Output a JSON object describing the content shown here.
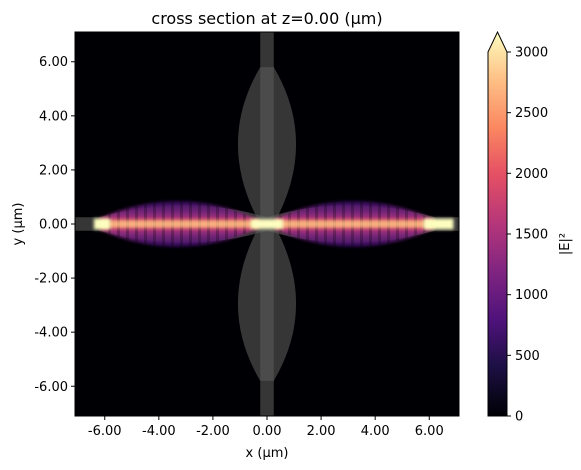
{
  "chart_data": {
    "type": "heatmap",
    "title": "cross section at z=0.00 (µm)",
    "xlabel": "x (µm)",
    "ylabel": "y (µm)",
    "xlim": [
      -7.1,
      7.1
    ],
    "ylim": [
      -7.1,
      7.1
    ],
    "x_ticks": [
      -6,
      -4,
      -2,
      0,
      2,
      4,
      6
    ],
    "x_tick_labels": [
      "-6.00",
      "-4.00",
      "-2.00",
      "0.00",
      "2.00",
      "4.00",
      "6.00"
    ],
    "y_ticks": [
      -6,
      -4,
      -2,
      0,
      2,
      4,
      6
    ],
    "y_tick_labels": [
      "-6.00",
      "-4.00",
      "-2.00",
      "0.00",
      "2.00",
      "4.00",
      "6.00"
    ],
    "grid": false,
    "background_color": "#000004",
    "colormap": "magma",
    "colorbar": {
      "label": "|E|²",
      "vmin": 0,
      "vmax": 3000,
      "extend": "max",
      "ticks": [
        0,
        500,
        1000,
        1500,
        2000,
        2500,
        3000
      ],
      "tick_labels": [
        "0",
        "500",
        "1000",
        "1500",
        "2000",
        "2500",
        "3000"
      ]
    },
    "structures": {
      "color": "#5a5a5a",
      "opacity": 0.6,
      "horizontal_waveguide": {
        "x_range": [
          -7.1,
          7.1
        ],
        "width": 0.5,
        "taper_ends": [
          -6.2,
          6.2
        ],
        "max_half_width": 0.75
      },
      "vertical_waveguide": {
        "y_range": [
          -7.1,
          7.1
        ],
        "width": 0.5,
        "taper_ends": [
          -5.8,
          5.8
        ],
        "max_half_width": 0.95
      }
    },
    "field_lobes": [
      {
        "name": "left lobe",
        "x_range": [
          -6.2,
          -0.3
        ],
        "peak_y_half_width": 0.75
      },
      {
        "name": "right lobe",
        "x_range": [
          0.3,
          6.2
        ],
        "peak_y_half_width": 0.75
      }
    ],
    "field_hotspots": [
      {
        "x_range": [
          -6.4,
          -5.8
        ],
        "half_height": 0.2,
        "value": 3000
      },
      {
        "x_range": [
          -0.6,
          0.6
        ],
        "half_height": 0.18,
        "value": 3000
      },
      {
        "x_range": [
          5.8,
          6.9
        ],
        "half_height": 0.2,
        "value": 3000
      }
    ]
  }
}
